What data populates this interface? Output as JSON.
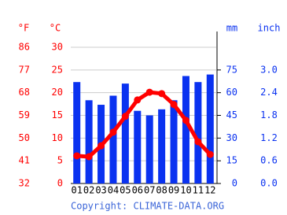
{
  "chart_data": {
    "type": "climate",
    "categories": [
      "01",
      "02",
      "03",
      "04",
      "05",
      "06",
      "07",
      "08",
      "09",
      "10",
      "11",
      "12"
    ],
    "series": [
      {
        "name": "mm",
        "kind": "bar",
        "axis": "y2",
        "color": "#0a32f0",
        "values": [
          67,
          55,
          52,
          58,
          66,
          48,
          45,
          49,
          55,
          71,
          67,
          72
        ]
      },
      {
        "name": "°C",
        "kind": "line",
        "color": "#ff0000",
        "values": [
          6.1,
          5.9,
          8.3,
          11.3,
          14.8,
          18.4,
          20.1,
          19.8,
          17.4,
          13.9,
          9.2,
          6.4
        ]
      }
    ],
    "ylabel": "°C",
    "ylim": [
      0,
      30
    ],
    "yticks": [
      0,
      5,
      10,
      15,
      20,
      25,
      30
    ],
    "fahrenheit_label": "°F",
    "fahrenheit_lim": [
      32,
      86
    ],
    "fahrenheit_ticks": [
      32,
      41,
      50,
      59,
      68,
      77,
      86
    ],
    "y2label": "mm",
    "y2lim": [
      0,
      90
    ],
    "y2ticks": [
      0,
      15,
      30,
      45,
      60,
      75
    ],
    "inch_label": "inch",
    "inch_lim": [
      0,
      3.6
    ],
    "inch_ticks": [
      {
        "value": 0,
        "label": "0.0"
      },
      0.6,
      1.2,
      1.8,
      2.4,
      {
        "value": 3,
        "label": "3.0"
      }
    ],
    "grid": true,
    "source": "Copyright: CLIMATE-DATA.ORG"
  }
}
